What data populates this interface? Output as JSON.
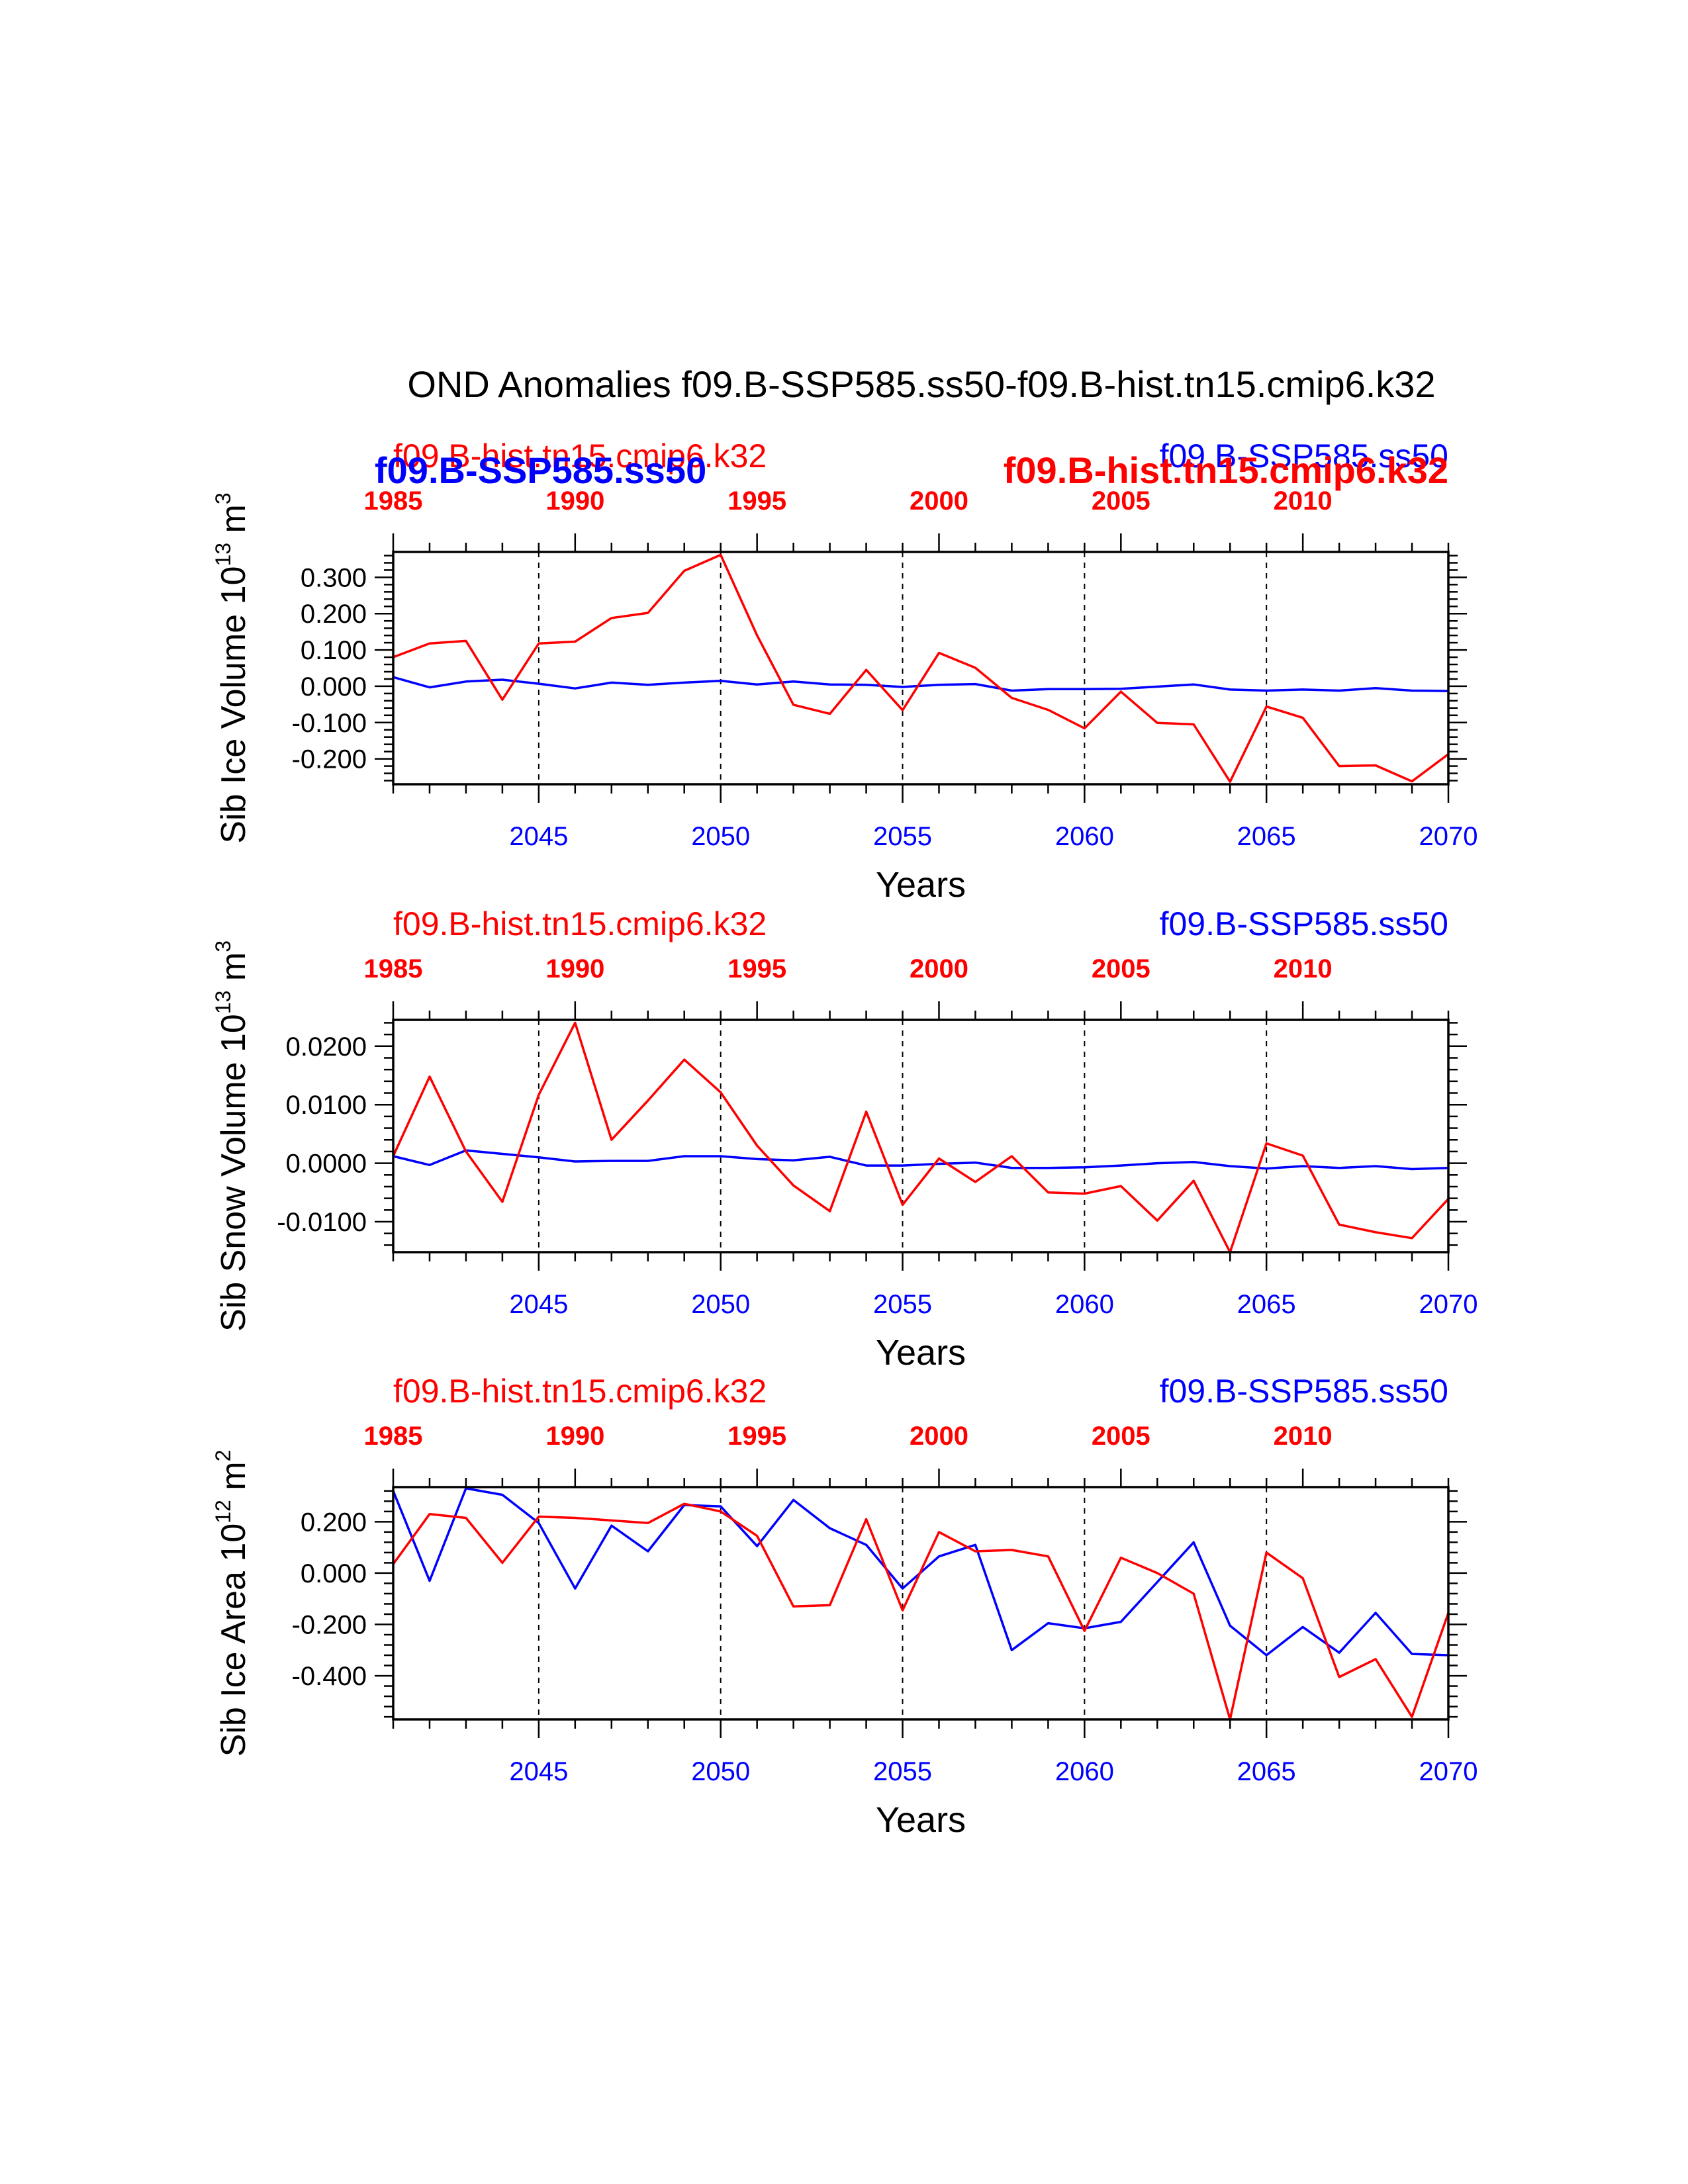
{
  "title": "OND Anomalies f09.B-SSP585.ss50-f09.B-hist.tn15.cmip6.k32",
  "colors": {
    "hist": "#ff0000",
    "ssp": "#0000ff",
    "axis": "#000000"
  },
  "chart_data": [
    {
      "type": "line",
      "ylabel": "Sib Ice Volume 10",
      "ylabel_exp": "13",
      "ylabel_unit": " m",
      "ylabel_unit_exp": "3",
      "xlabel": "Years",
      "xlim": [
        2041,
        2070
      ],
      "ylim": [
        -0.27,
        0.37
      ],
      "yticks": [
        -0.2,
        -0.1,
        0.0,
        0.1,
        0.2,
        0.3
      ],
      "yticklabels": [
        "-0.200",
        "-0.100",
        "0.000",
        "0.100",
        "0.200",
        "0.300"
      ],
      "bottom_ticks": [
        2045,
        2050,
        2055,
        2060,
        2065,
        2070
      ],
      "bottom_ticklabels": [
        "2045",
        "2050",
        "2055",
        "2060",
        "2065",
        "2070"
      ],
      "top_ticks": [
        1985,
        1990,
        1995,
        2000,
        2005,
        2010
      ],
      "top_ticklabels": [
        "1985",
        "1990",
        "1995",
        "2000",
        "2005",
        "2010"
      ],
      "top_offset": 56,
      "vlines": [
        2045,
        2050,
        2055,
        2060,
        2065
      ],
      "labels": [
        {
          "text": "f09.B-hist.tn15.cmip6.k32",
          "pos": "top-left",
          "style": "normal",
          "color": "#ff0000",
          "row": "upper"
        },
        {
          "text": "f09.B-SSP585.ss50",
          "pos": "top-left",
          "style": "bold",
          "color": "#0000ff",
          "row": "lower"
        },
        {
          "text": "f09.B-SSP585.ss50",
          "pos": "top-right",
          "style": "normal",
          "color": "#0000ff",
          "row": "upper"
        },
        {
          "text": "f09.B-hist.tn15.cmip6.k32",
          "pos": "top-right",
          "style": "bold",
          "color": "#ff0000",
          "row": "lower"
        }
      ],
      "x": [
        2041,
        2042,
        2043,
        2044,
        2045,
        2046,
        2047,
        2048,
        2049,
        2050,
        2051,
        2052,
        2053,
        2054,
        2055,
        2056,
        2057,
        2058,
        2059,
        2060,
        2061,
        2062,
        2063,
        2064,
        2065,
        2066,
        2067,
        2068,
        2069,
        2070
      ],
      "series": [
        {
          "key": "ssp",
          "values": [
            0.025,
            -0.003,
            0.013,
            0.018,
            0.007,
            -0.006,
            0.01,
            0.004,
            0.01,
            0.015,
            0.005,
            0.013,
            0.005,
            0.004,
            -0.002,
            0.004,
            0.006,
            -0.012,
            -0.008,
            -0.008,
            -0.007,
            -0.001,
            0.005,
            -0.009,
            -0.012,
            -0.009,
            -0.012,
            -0.005,
            -0.012,
            -0.013
          ]
        },
        {
          "key": "hist",
          "values": [
            0.08,
            0.118,
            0.125,
            -0.037,
            0.118,
            0.123,
            0.188,
            0.202,
            0.318,
            0.362,
            0.14,
            -0.051,
            -0.076,
            0.045,
            -0.066,
            0.092,
            0.051,
            -0.032,
            -0.065,
            -0.116,
            -0.015,
            -0.101,
            -0.105,
            -0.263,
            -0.056,
            -0.087,
            -0.22,
            -0.218,
            -0.262,
            -0.187
          ]
        }
      ]
    },
    {
      "type": "line",
      "ylabel": "Sib Snow Volume 10",
      "ylabel_exp": "13",
      "ylabel_unit": " m",
      "ylabel_unit_exp": "3",
      "xlabel": "Years",
      "xlim": [
        2041,
        2070
      ],
      "ylim": [
        -0.0152,
        0.0245
      ],
      "yticks": [
        -0.01,
        0.0,
        0.01,
        0.02
      ],
      "yticklabels": [
        "-0.0100",
        "0.0000",
        "0.0100",
        "0.0200"
      ],
      "bottom_ticks": [
        2045,
        2050,
        2055,
        2060,
        2065,
        2070
      ],
      "bottom_ticklabels": [
        "2045",
        "2050",
        "2055",
        "2060",
        "2065",
        "2070"
      ],
      "top_ticks": [
        1985,
        1990,
        1995,
        2000,
        2005,
        2010
      ],
      "top_ticklabels": [
        "1985",
        "1990",
        "1995",
        "2000",
        "2005",
        "2010"
      ],
      "top_offset": 56,
      "vlines": [
        2045,
        2050,
        2055,
        2060,
        2065
      ],
      "labels": [
        {
          "text": "f09.B-hist.tn15.cmip6.k32",
          "pos": "top-left",
          "style": "normal",
          "color": "#ff0000",
          "row": "upper"
        },
        {
          "text": "f09.B-SSP585.ss50",
          "pos": "top-right",
          "style": "normal",
          "color": "#0000ff",
          "row": "upper"
        }
      ],
      "x": [
        2041,
        2042,
        2043,
        2044,
        2045,
        2046,
        2047,
        2048,
        2049,
        2050,
        2051,
        2052,
        2053,
        2054,
        2055,
        2056,
        2057,
        2058,
        2059,
        2060,
        2061,
        2062,
        2063,
        2064,
        2065,
        2066,
        2067,
        2068,
        2069,
        2070
      ],
      "series": [
        {
          "key": "ssp",
          "values": [
            0.0012,
            -0.0003,
            0.0022,
            0.0016,
            0.001,
            0.0003,
            0.0004,
            0.0004,
            0.0012,
            0.0012,
            0.0007,
            0.0005,
            0.0011,
            -0.0004,
            -0.0004,
            -0.0001,
            0.0001,
            -0.0008,
            -0.0008,
            -0.0007,
            -0.0004,
            0.0,
            0.0002,
            -0.0005,
            -0.0009,
            -0.0005,
            -0.0008,
            -0.0005,
            -0.001,
            -0.0008
          ]
        },
        {
          "key": "hist",
          "values": [
            0.0012,
            0.0148,
            0.002,
            -0.0066,
            0.0117,
            0.024,
            0.004,
            0.0107,
            0.0177,
            0.0121,
            0.003,
            -0.0038,
            -0.0082,
            0.0088,
            -0.0071,
            0.0008,
            -0.0032,
            0.0012,
            -0.005,
            -0.0052,
            -0.0039,
            -0.0098,
            -0.003,
            -0.0152,
            0.0034,
            0.0013,
            -0.0105,
            -0.0118,
            -0.0128,
            -0.0061
          ]
        }
      ]
    },
    {
      "type": "line",
      "ylabel": "Sib Ice Area 10",
      "ylabel_exp": "12",
      "ylabel_unit": " m",
      "ylabel_unit_exp": "2",
      "xlabel": "Years",
      "xlim": [
        2041,
        2070
      ],
      "ylim": [
        -0.57,
        0.335
      ],
      "yticks": [
        -0.4,
        -0.2,
        0.0,
        0.2
      ],
      "yticklabels": [
        "-0.400",
        "-0.200",
        "0.000",
        "0.200"
      ],
      "bottom_ticks": [
        2045,
        2050,
        2055,
        2060,
        2065,
        2070
      ],
      "bottom_ticklabels": [
        "2045",
        "2050",
        "2055",
        "2060",
        "2065",
        "2070"
      ],
      "top_ticks": [
        1985,
        1990,
        1995,
        2000,
        2005,
        2010
      ],
      "top_ticklabels": [
        "1985",
        "1990",
        "1995",
        "2000",
        "2005",
        "2010"
      ],
      "top_offset": 56,
      "vlines": [
        2045,
        2050,
        2055,
        2060,
        2065
      ],
      "labels": [
        {
          "text": "f09.B-hist.tn15.cmip6.k32",
          "pos": "top-left",
          "style": "normal",
          "color": "#ff0000",
          "row": "upper"
        },
        {
          "text": "f09.B-SSP585.ss50",
          "pos": "top-right",
          "style": "normal",
          "color": "#0000ff",
          "row": "upper"
        }
      ],
      "x": [
        2041,
        2042,
        2043,
        2044,
        2045,
        2046,
        2047,
        2048,
        2049,
        2050,
        2051,
        2052,
        2053,
        2054,
        2055,
        2056,
        2057,
        2058,
        2059,
        2060,
        2061,
        2062,
        2063,
        2064,
        2065,
        2066,
        2067,
        2068,
        2069,
        2070
      ],
      "series": [
        {
          "key": "ssp",
          "values": [
            0.32,
            -0.03,
            0.33,
            0.305,
            0.195,
            -0.06,
            0.185,
            0.085,
            0.265,
            0.26,
            0.105,
            0.285,
            0.175,
            0.11,
            -0.06,
            0.065,
            0.11,
            -0.3,
            -0.195,
            -0.215,
            -0.19,
            -0.035,
            0.12,
            -0.205,
            -0.32,
            -0.21,
            -0.31,
            -0.155,
            -0.315,
            -0.32
          ]
        },
        {
          "key": "hist",
          "values": [
            0.035,
            0.23,
            0.215,
            0.04,
            0.22,
            0.215,
            0.205,
            0.195,
            0.27,
            0.24,
            0.145,
            -0.13,
            -0.125,
            0.21,
            -0.145,
            0.16,
            0.085,
            0.09,
            0.065,
            -0.225,
            0.06,
            0.0,
            -0.08,
            -0.57,
            0.08,
            -0.02,
            -0.405,
            -0.335,
            -0.56,
            -0.155
          ]
        }
      ]
    }
  ]
}
